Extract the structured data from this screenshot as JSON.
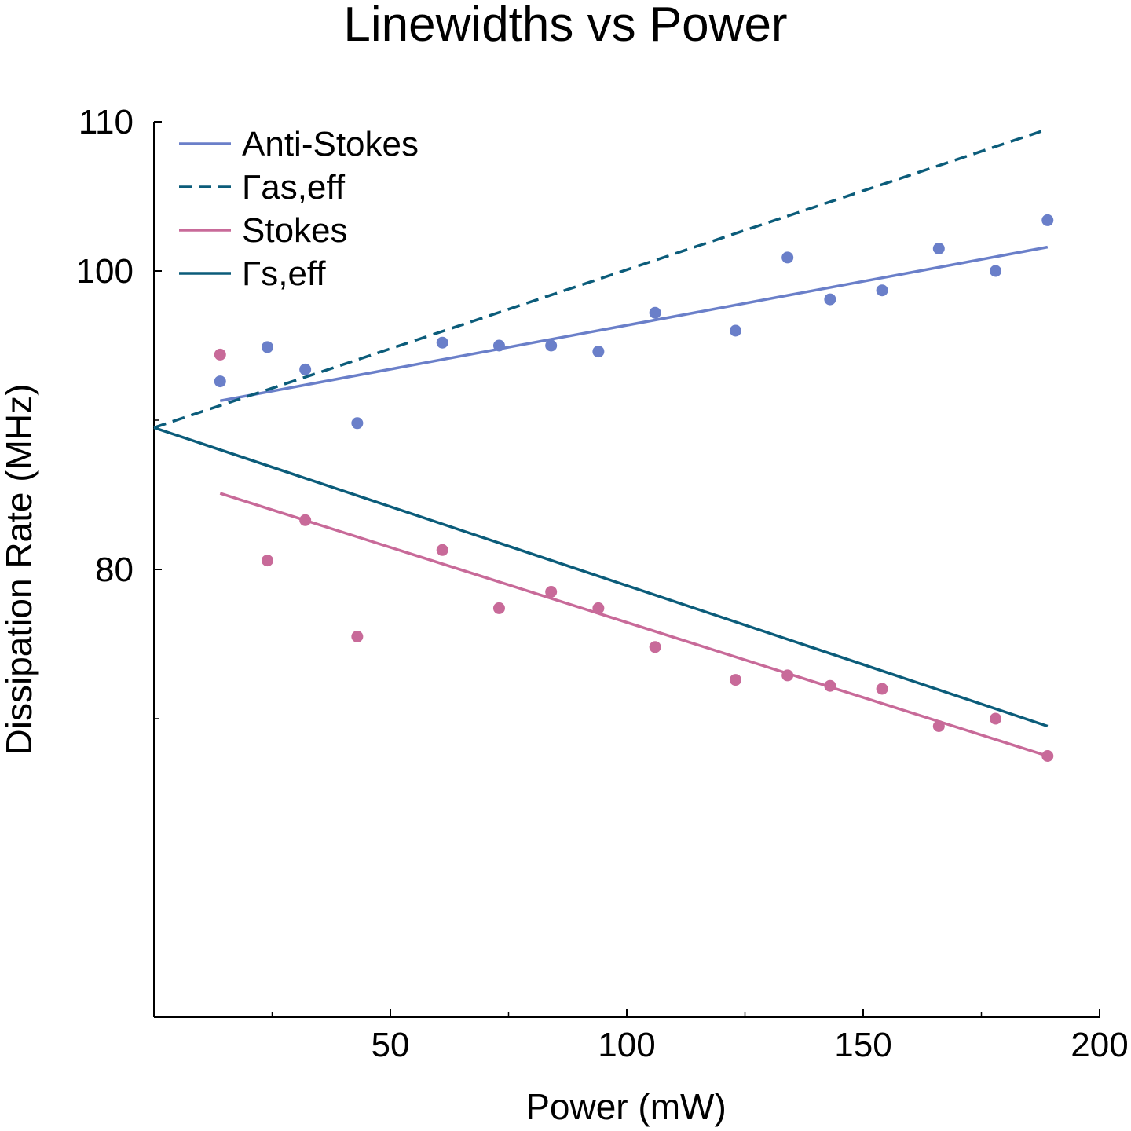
{
  "chart_data": {
    "type": "scatter",
    "title": "Linewidths vs Power",
    "xlabel": "Power (mW)",
    "ylabel": "Dissipation Rate (MHz)",
    "xlim": [
      0,
      200
    ],
    "ylim": [
      50,
      110
    ],
    "xticks": [
      50,
      100,
      150,
      200
    ],
    "xticks_minor": [
      25,
      75,
      125,
      175
    ],
    "yticks": [
      80,
      100,
      110
    ],
    "yticks_minor": [
      70,
      90,
      100,
      110
    ],
    "grid": false,
    "legend_position": "top-left",
    "colors": {
      "anti_stokes": "#6a7fc9",
      "gamma_as_eff": "#0b5c7a",
      "stokes": "#c86a99",
      "gamma_s_eff": "#0b5c7a",
      "axis": "#000000"
    },
    "legend": [
      {
        "label": "Anti-Stokes",
        "style": "solid",
        "color": "#6a7fc9"
      },
      {
        "label": "Γas,eff",
        "style": "dashed",
        "color": "#0b5c7a"
      },
      {
        "label": "Stokes",
        "style": "solid",
        "color": "#c86a99"
      },
      {
        "label": "Γs,eff",
        "style": "solid",
        "color": "#0b5c7a"
      }
    ],
    "scatter_series": [
      {
        "name": "Anti-Stokes",
        "color": "#6a7fc9",
        "x": [
          14,
          24,
          32,
          43,
          61,
          73,
          84,
          94,
          106,
          123,
          134,
          143,
          154,
          166,
          178,
          189
        ],
        "y": [
          92.6,
          94.9,
          93.4,
          89.8,
          95.2,
          95.0,
          95.0,
          94.6,
          97.2,
          96.0,
          100.9,
          98.1,
          98.7,
          101.5,
          100.0,
          103.4
        ]
      },
      {
        "name": "Stokes",
        "color": "#c86a99",
        "x": [
          14,
          24,
          32,
          43,
          61,
          73,
          84,
          94,
          106,
          123,
          134,
          143,
          154,
          166,
          178,
          189
        ],
        "y": [
          94.4,
          80.6,
          83.3,
          75.5,
          81.3,
          77.4,
          78.5,
          77.4,
          74.8,
          72.6,
          72.9,
          72.2,
          72.0,
          69.5,
          70.0,
          67.5
        ]
      }
    ],
    "line_series": [
      {
        "name": "Anti-Stokes",
        "color": "#6a7fc9",
        "style": "solid",
        "x": [
          14,
          189
        ],
        "y": [
          91.3,
          101.6
        ]
      },
      {
        "name": "Γas,eff",
        "color": "#0b5c7a",
        "style": "dashed",
        "x": [
          0,
          189
        ],
        "y": [
          89.5,
          109.5
        ]
      },
      {
        "name": "Stokes",
        "color": "#c86a99",
        "style": "solid",
        "x": [
          14,
          189
        ],
        "y": [
          85.1,
          67.5
        ]
      },
      {
        "name": "Γs,eff",
        "color": "#0b5c7a",
        "style": "solid",
        "x": [
          0,
          189
        ],
        "y": [
          89.5,
          69.5
        ]
      }
    ]
  }
}
